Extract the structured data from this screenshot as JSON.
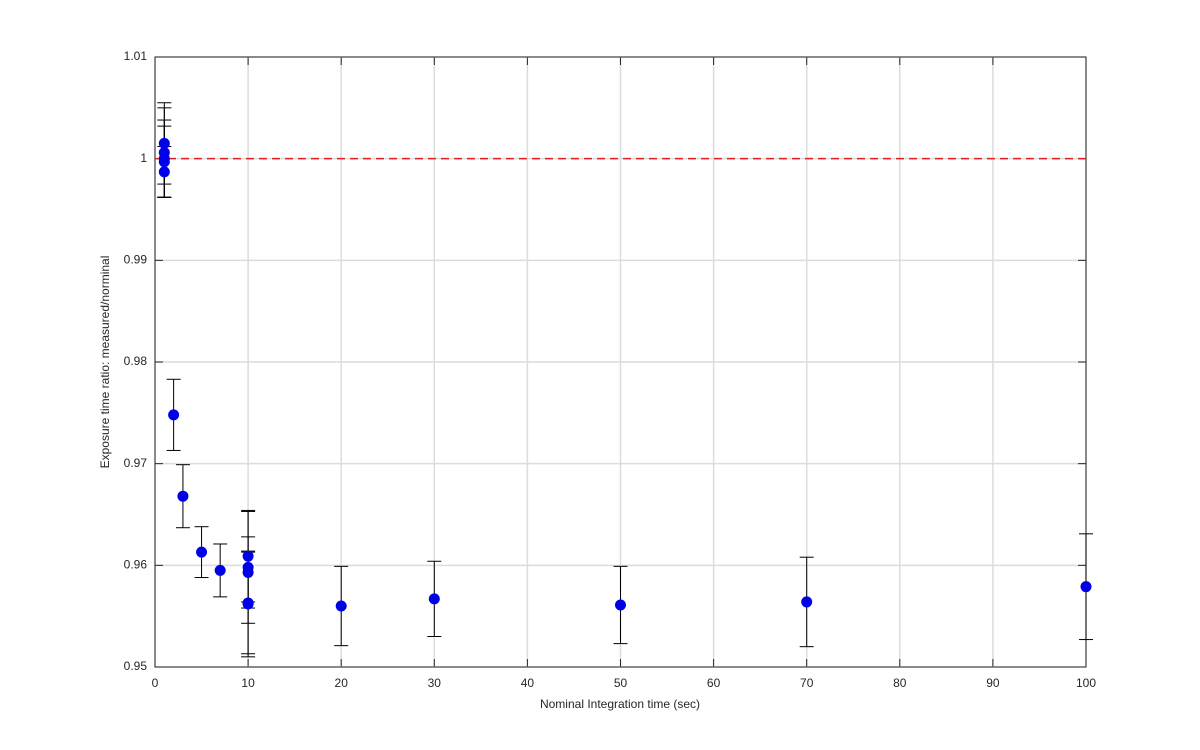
{
  "chart_data": {
    "type": "scatter",
    "x_label": "Nominal Integration time (sec)",
    "y_label": "Exposure time ratio: measured/norminal",
    "x": [
      1,
      1,
      1,
      1,
      1,
      2,
      3,
      5,
      7,
      10,
      10,
      10,
      10,
      10,
      20,
      30,
      50,
      70,
      100
    ],
    "values": [
      1.0015,
      1.0006,
      1.0,
      0.9997,
      0.9987,
      0.9748,
      0.9668,
      0.9613,
      0.9595,
      0.9609,
      0.9598,
      0.9593,
      0.9563,
      0.9562,
      0.956,
      0.9567,
      0.9561,
      0.9564,
      0.9579
    ],
    "errors": [
      0.004,
      0.0044,
      0.0038,
      0.0035,
      0.0025,
      0.0035,
      0.0031,
      0.0025,
      0.0026,
      0.0045,
      0.0055,
      0.0035,
      0.005,
      0.0052,
      0.0039,
      0.0037,
      0.0038,
      0.0044,
      0.0052
    ],
    "color": "#0000e6",
    "error_color": "#000000",
    "reference_line": 1,
    "reference_color": "#e02020",
    "xlim": [
      0,
      100
    ],
    "xticks": [
      0,
      10,
      20,
      30,
      40,
      50,
      60,
      70,
      80,
      90,
      100
    ],
    "ylim": [
      0.95,
      1.01
    ],
    "yticks": [
      0.95,
      0.96,
      0.97,
      0.98,
      0.99,
      1,
      1.01
    ],
    "grid": true
  }
}
